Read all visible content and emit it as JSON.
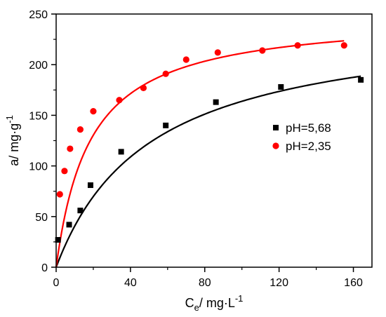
{
  "chart_data": {
    "type": "scatter",
    "title": "",
    "xlabel": {
      "main": "C",
      "sub": "e",
      "rest": "/ mg·L",
      "sup": "-1"
    },
    "ylabel": {
      "main": "a/ mg·g",
      "sup": "-1"
    },
    "xlim": [
      0,
      170
    ],
    "ylim": [
      0,
      250
    ],
    "xticks": [
      "0",
      "40",
      "80",
      "120",
      "160"
    ],
    "yticks": [
      "0",
      "50",
      "100",
      "150",
      "200",
      "250"
    ],
    "legend_position": "right-middle",
    "grid": false,
    "series": [
      {
        "name": "pH=5,68",
        "marker": "square",
        "color": "#000000",
        "x": [
          1.0,
          7.0,
          13.0,
          18.5,
          35.0,
          59.0,
          86.0,
          121.0,
          164.0
        ],
        "y": [
          27,
          42,
          56,
          81,
          114,
          140,
          163,
          178,
          185
        ],
        "fit": {
          "model": "langmuir",
          "qmax": 247,
          "K": 0.0197,
          "color": "#000000"
        }
      },
      {
        "name": "pH=2,35",
        "marker": "circle",
        "color": "#ff0000",
        "x": [
          2.0,
          4.5,
          7.5,
          13.0,
          20.0,
          34.0,
          47.0,
          59.0,
          70.0,
          87.0,
          111.0,
          130.0,
          155.0
        ],
        "y": [
          72,
          95,
          117,
          136,
          154,
          165,
          177,
          191,
          205,
          212,
          214,
          219,
          219
        ],
        "fit": {
          "model": "langmuir",
          "qmax": 250,
          "K": 0.0545,
          "color": "#ff0000"
        }
      }
    ]
  }
}
